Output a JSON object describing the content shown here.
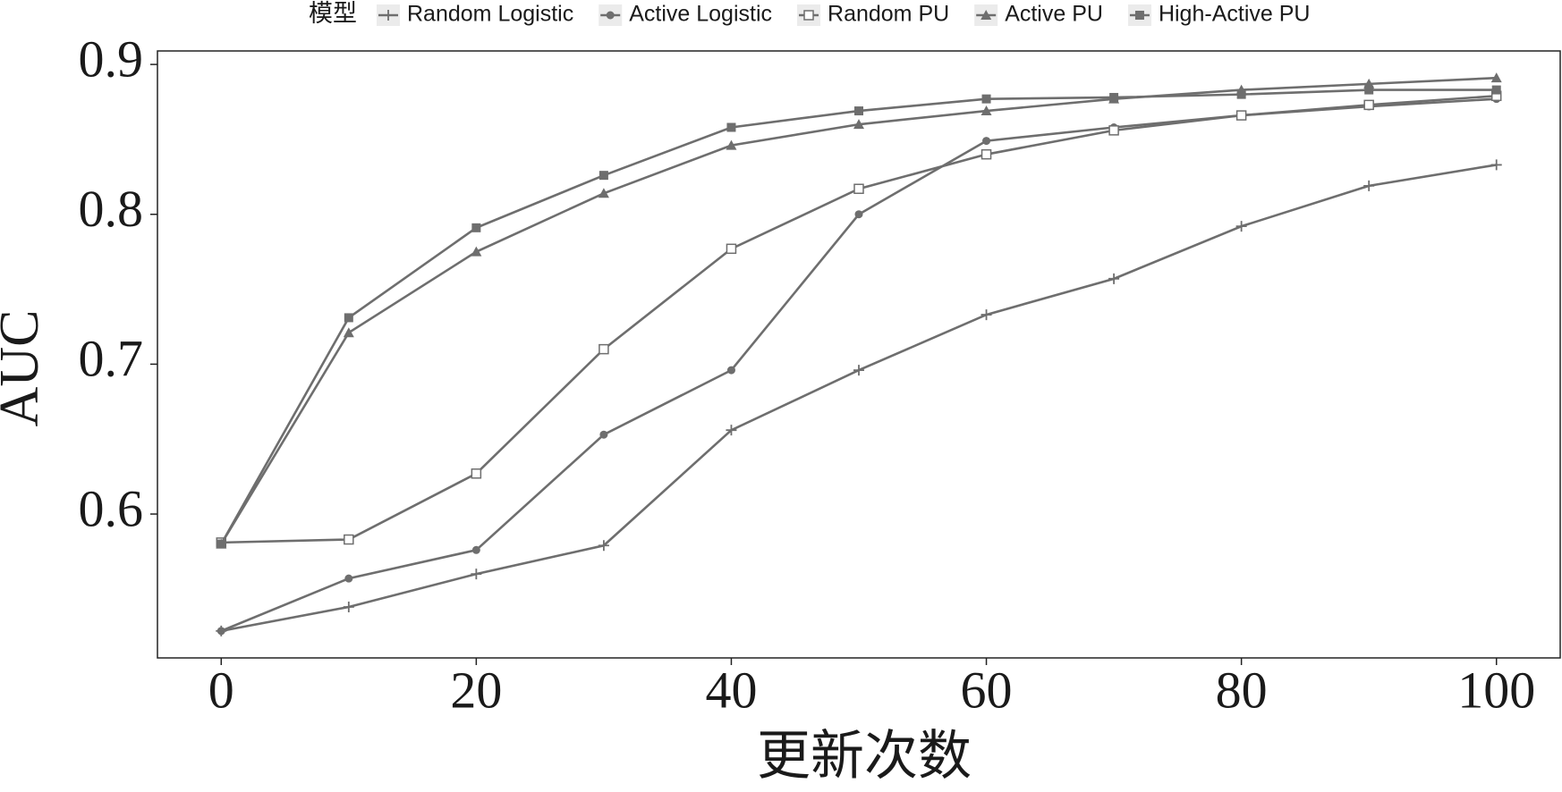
{
  "chart_data": {
    "type": "line",
    "x_label": "更新次数",
    "y_label": "AUC",
    "legend_title": "模型",
    "legend_position": "top",
    "x": [
      0,
      10,
      20,
      30,
      40,
      50,
      60,
      70,
      80,
      90,
      100
    ],
    "xlim": [
      -5,
      105
    ],
    "xticks": [
      0,
      20,
      40,
      60,
      80,
      100
    ],
    "ylim": [
      0.504,
      0.909
    ],
    "yticks": [
      0.6,
      0.7,
      0.8,
      0.9
    ],
    "grid": false,
    "series": [
      {
        "name": "Random Logistic",
        "color": "#6e6e6e",
        "marker": "plus",
        "values": [
          0.522,
          0.538,
          0.56,
          0.579,
          0.656,
          0.696,
          0.733,
          0.757,
          0.792,
          0.819,
          0.833
        ]
      },
      {
        "name": "Active Logistic",
        "color": "#6e6e6e",
        "marker": "circle",
        "values": [
          0.522,
          0.557,
          0.576,
          0.653,
          0.696,
          0.8,
          0.849,
          0.858,
          0.866,
          0.872,
          0.877
        ]
      },
      {
        "name": "Random PU",
        "color": "#6e6e6e",
        "marker": "open-square",
        "values": [
          0.581,
          0.583,
          0.627,
          0.71,
          0.777,
          0.817,
          0.84,
          0.856,
          0.866,
          0.873,
          0.879
        ]
      },
      {
        "name": "Active PU",
        "color": "#6e6e6e",
        "marker": "triangle",
        "values": [
          0.58,
          0.721,
          0.775,
          0.814,
          0.846,
          0.86,
          0.869,
          0.877,
          0.883,
          0.887,
          0.891
        ]
      },
      {
        "name": "High-Active PU",
        "color": "#6e6e6e",
        "marker": "square",
        "values": [
          0.58,
          0.731,
          0.791,
          0.826,
          0.858,
          0.869,
          0.877,
          0.878,
          0.88,
          0.883,
          0.883
        ]
      }
    ]
  }
}
